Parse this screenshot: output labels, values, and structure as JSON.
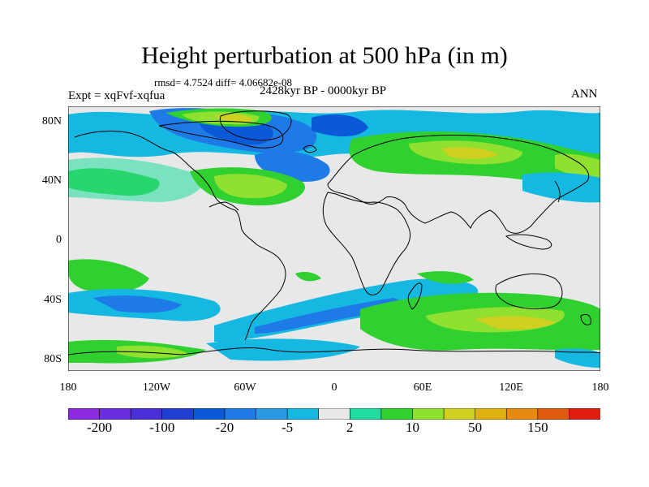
{
  "title": "Height perturbation at 500 hPa (in m)",
  "stats": "rmsd= 4.7524 diff= 4.06682e-08",
  "experiment": "Expt = xqFvf-xqfua",
  "period": "2428kyr BP - 0000kyr BP",
  "season": "ANN",
  "lat_labels": [
    "80N",
    "40N",
    "0",
    "40S",
    "80S"
  ],
  "lon_labels": [
    "180",
    "120W",
    "60W",
    "0",
    "60E",
    "120E",
    "180"
  ],
  "colorbar": {
    "colors": [
      "#8a2be2",
      "#6a2ee0",
      "#4a2fd8",
      "#1f3fd0",
      "#0a5ad8",
      "#1e7ae6",
      "#2a9ae6",
      "#14b8e0",
      "#e8e8e8",
      "#20dca0",
      "#30d030",
      "#90e030",
      "#d0d020",
      "#e0b010",
      "#e88a10",
      "#e05a10",
      "#e01e10"
    ],
    "labels": [
      "-200",
      "-100",
      "-20",
      "-5",
      "2",
      "10",
      "50",
      "150"
    ]
  }
}
